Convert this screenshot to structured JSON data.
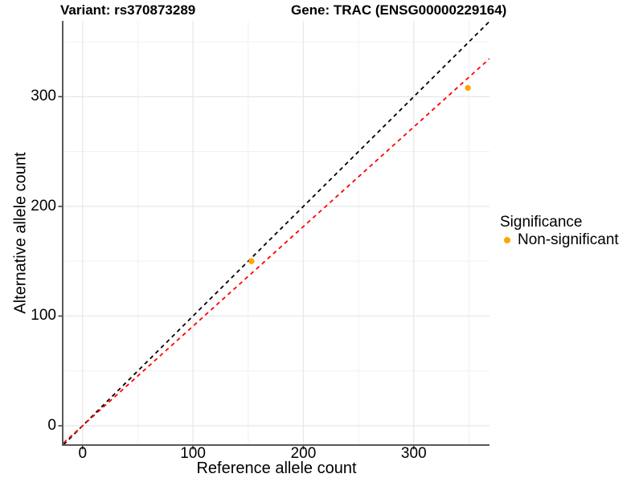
{
  "chart_data": {
    "type": "scatter",
    "titles": {
      "left": "Variant: rs370873289",
      "right": "Gene: TRAC (ENSG00000229164)"
    },
    "xlabel": "Reference allele count",
    "ylabel": "Alternative allele count",
    "xlim": [
      -17.3,
      368.6
    ],
    "ylim": [
      -16.84,
      369.1
    ],
    "x_ticks": [
      0,
      100,
      200,
      300
    ],
    "y_ticks": [
      0,
      100,
      200,
      300
    ],
    "x_minor_ticks": [
      50,
      150,
      250,
      350
    ],
    "y_minor_ticks": [
      50,
      150,
      250,
      350
    ],
    "grid": true,
    "series": [
      {
        "name": "Non-significant",
        "color": "#FFA500",
        "marker": "dot",
        "points": [
          {
            "x": 153,
            "y": 150
          },
          {
            "x": 349,
            "y": 308
          }
        ]
      }
    ],
    "lines": [
      {
        "name": "identity-line",
        "slope": 1,
        "intercept": 0,
        "color": "#000000",
        "style": "dashed"
      },
      {
        "name": "fit-line",
        "slope": 0.908,
        "intercept": 0,
        "color": "#FF0000",
        "style": "dashed"
      }
    ],
    "legend": {
      "position": "right",
      "title": "Significance",
      "items": [
        {
          "label": "Non-significant",
          "color": "#FFA500",
          "marker": "dot"
        }
      ]
    },
    "colors": {
      "background": "#FFFFFF",
      "grid_major": "#E6E6E6",
      "grid_minor": "#F1F1F1",
      "axis_line": "#595959",
      "tick": "#333333",
      "text": "#000000"
    }
  }
}
